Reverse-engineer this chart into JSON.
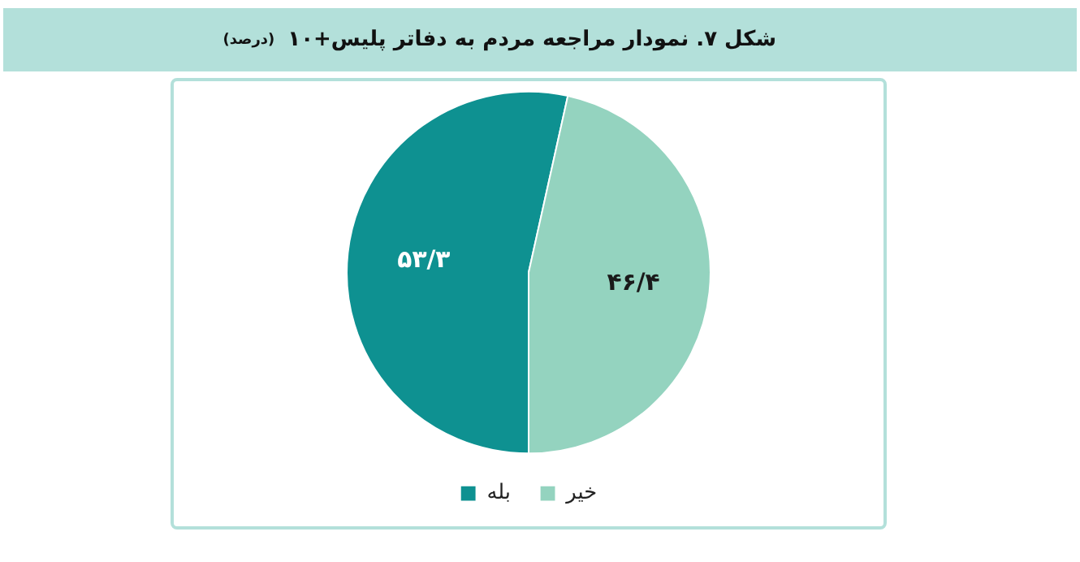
{
  "chart_data": {
    "type": "pie",
    "title": "شکل ۷. نمودار مراجعه مردم به دفاتر پلیس+۱۰",
    "subtitle": "(درصد)",
    "categories": [
      "بله",
      "خیر"
    ],
    "values": [
      53.3,
      46.4
    ],
    "value_labels": [
      "۵۳/۳",
      "۴۶/۴"
    ],
    "colors": [
      "#0e9191",
      "#94d3bf"
    ],
    "legend": "bottom"
  }
}
